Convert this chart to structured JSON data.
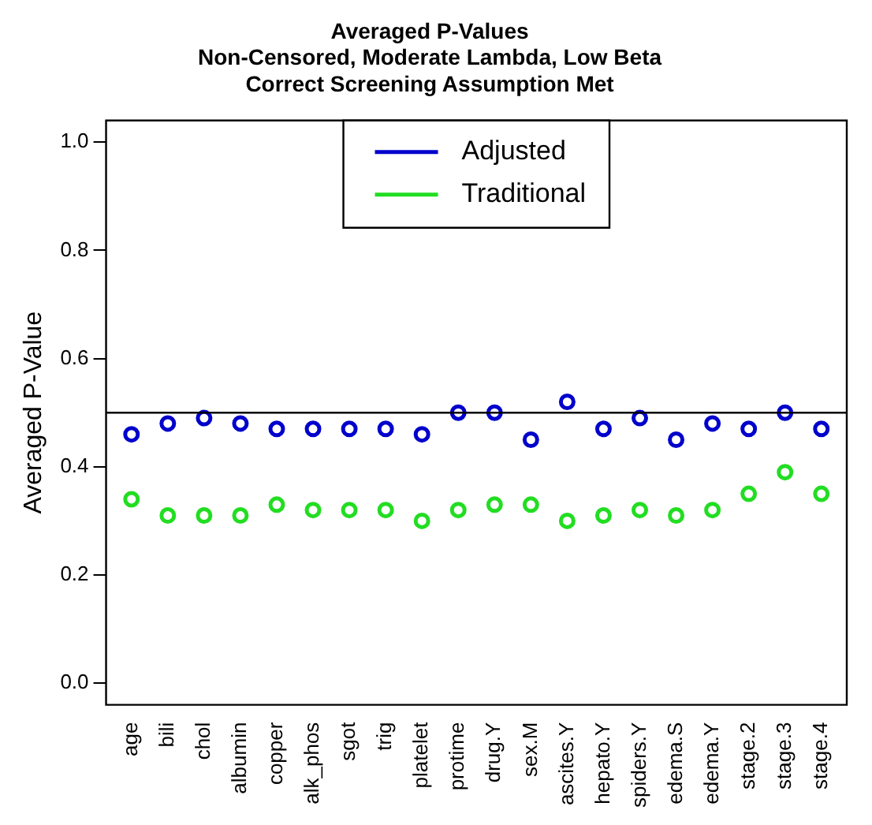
{
  "chart_data": {
    "type": "scatter",
    "title": "Averaged P-Values",
    "subtitle": "Non-Censored, Moderate Lambda, Low Beta\nCorrect Screening Assumption Met",
    "ylabel": "Averaged P-Value",
    "categories": [
      "age",
      "bili",
      "chol",
      "albumin",
      "copper",
      "alk_phos",
      "sgot",
      "trig",
      "platelet",
      "protime",
      "drug.Y",
      "sex.M",
      "ascites.Y",
      "hepato.Y",
      "spiders.Y",
      "edema.S",
      "edema.Y",
      "stage.2",
      "stage.3",
      "stage.4"
    ],
    "series": [
      {
        "name": "Adjusted",
        "color": "#0000cc",
        "values": [
          0.46,
          0.48,
          0.49,
          0.48,
          0.47,
          0.47,
          0.47,
          0.47,
          0.46,
          0.5,
          0.5,
          0.45,
          0.52,
          0.47,
          0.49,
          0.45,
          0.48,
          0.47,
          0.5,
          0.47
        ]
      },
      {
        "name": "Traditional",
        "color": "#22dd22",
        "values": [
          0.34,
          0.31,
          0.31,
          0.31,
          0.33,
          0.32,
          0.32,
          0.32,
          0.3,
          0.32,
          0.33,
          0.33,
          0.3,
          0.31,
          0.32,
          0.31,
          0.32,
          0.35,
          0.39,
          0.35
        ]
      }
    ],
    "ylim": [
      -0.04,
      1.04
    ],
    "yticks": [
      {
        "value": 0,
        "label": "0.0"
      },
      0.2,
      0.4,
      0.6,
      0.8,
      {
        "value": 1,
        "label": "1.0"
      }
    ],
    "ref_lines": [
      {
        "axis": "y",
        "value": 0.5,
        "color": "#000000"
      }
    ],
    "legend": "top",
    "marker": "circle",
    "grid": false
  }
}
